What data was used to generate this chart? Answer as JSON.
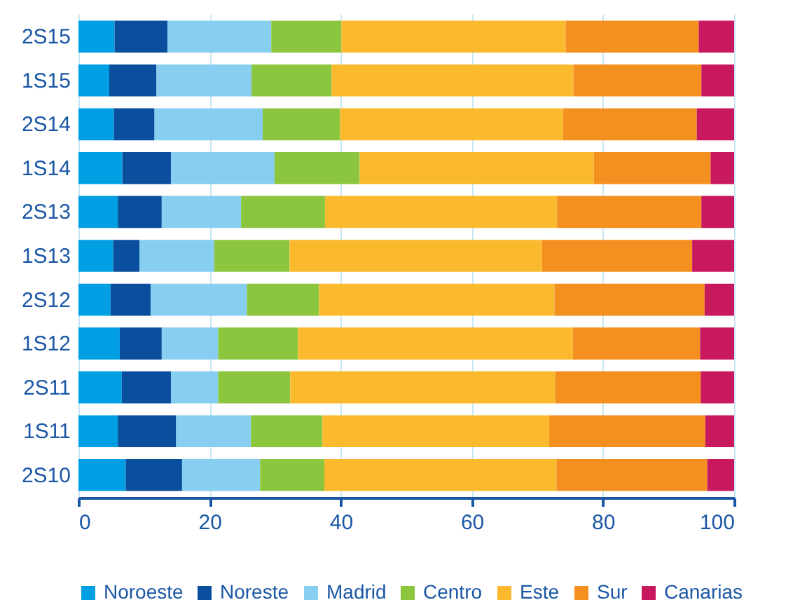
{
  "chart_data": {
    "type": "bar",
    "orientation": "horizontal",
    "stacked": true,
    "categories": [
      "2S15",
      "1S15",
      "2S14",
      "1S14",
      "2S13",
      "1S13",
      "2S12",
      "1S12",
      "2S11",
      "1S11",
      "2S10"
    ],
    "series": [
      {
        "name": "Noroeste",
        "color": "#009fe3",
        "values": [
          5.5,
          4.7,
          5.4,
          6.7,
          6.0,
          5.3,
          4.9,
          6.3,
          6.6,
          6.0,
          7.2
        ]
      },
      {
        "name": "Noreste",
        "color": "#0a4f9e",
        "values": [
          8.1,
          7.2,
          6.2,
          7.4,
          6.7,
          4.0,
          6.1,
          6.4,
          7.5,
          8.9,
          8.6
        ]
      },
      {
        "name": "Madrid",
        "color": "#87cef0",
        "values": [
          15.8,
          14.5,
          16.5,
          15.8,
          12.1,
          11.4,
          14.7,
          8.6,
          7.2,
          11.4,
          11.9
        ]
      },
      {
        "name": "Centro",
        "color": "#8cc63f",
        "values": [
          10.7,
          12.2,
          11.8,
          13.0,
          12.8,
          11.5,
          11.0,
          12.2,
          11.0,
          10.9,
          9.8
        ]
      },
      {
        "name": "Este",
        "color": "#fbba2e",
        "values": [
          34.2,
          36.9,
          34.0,
          35.7,
          35.4,
          38.5,
          35.9,
          41.9,
          40.4,
          34.6,
          35.4
        ]
      },
      {
        "name": "Sur",
        "color": "#f39020",
        "values": [
          20.3,
          19.5,
          20.4,
          17.8,
          22.0,
          22.9,
          22.9,
          19.4,
          22.2,
          23.8,
          23.0
        ]
      },
      {
        "name": "Canarias",
        "color": "#c9195e",
        "values": [
          5.4,
          5.0,
          5.7,
          3.6,
          5.0,
          6.4,
          4.5,
          5.2,
          5.1,
          4.4,
          4.1
        ]
      }
    ],
    "xlim": [
      0,
      100
    ],
    "xticks": [
      0,
      20,
      40,
      60,
      80,
      100
    ],
    "grid": "x",
    "legend": "bottom"
  }
}
